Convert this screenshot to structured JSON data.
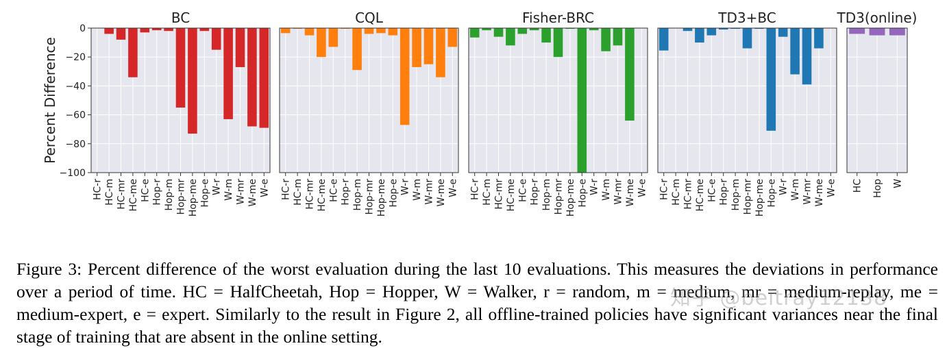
{
  "chart_data": {
    "type": "bar",
    "ylabel": "Percent Difference",
    "ylim": [
      -100,
      0
    ],
    "yticks": [
      0,
      -20,
      -40,
      -60,
      -80,
      -100
    ],
    "yticklabels": [
      "0",
      "−20",
      "−40",
      "−60",
      "−80",
      "−100"
    ],
    "grid": true,
    "panels": [
      {
        "title": "BC",
        "color": "#d62728",
        "categories": [
          "HC-r",
          "HC-m",
          "HC-mr",
          "HC-me",
          "HC-e",
          "Hop-r",
          "Hop-m",
          "Hop-mr",
          "Hop-me",
          "Hop-e",
          "W-r",
          "W-m",
          "W-mr",
          "W-me",
          "W-e"
        ],
        "values": [
          0,
          -4,
          -8,
          -34,
          -3,
          -1.5,
          -2,
          -55,
          -73,
          -2,
          -15,
          -63,
          -27,
          -68,
          -69
        ]
      },
      {
        "title": "CQL",
        "color": "#ff7f0e",
        "categories": [
          "HC-r",
          "HC-m",
          "HC-mr",
          "HC-me",
          "HC-e",
          "Hop-r",
          "Hop-m",
          "Hop-mr",
          "Hop-me",
          "Hop-e",
          "W-r",
          "W-m",
          "W-mr",
          "W-me",
          "W-e"
        ],
        "values": [
          -3.5,
          -0.5,
          -5,
          -20,
          -13,
          -0.5,
          -29,
          -4,
          -3.5,
          -5,
          -67,
          -27,
          -25,
          -34,
          -13
        ]
      },
      {
        "title": "Fisher-BRC",
        "color": "#2ca02c",
        "categories": [
          "HC-r",
          "HC-m",
          "HC-mr",
          "HC-me",
          "HC-e",
          "Hop-r",
          "Hop-m",
          "Hop-mr",
          "Hop-me",
          "Hop-e",
          "W-r",
          "W-m",
          "W-mr",
          "W-me",
          "W-e"
        ],
        "values": [
          -6.5,
          -1.5,
          -6,
          -12,
          -4,
          -1.5,
          -10,
          -20,
          -0.5,
          -100,
          -1.5,
          -16,
          -12,
          -64,
          0
        ]
      },
      {
        "title": "TD3+BC",
        "color": "#1f77b4",
        "categories": [
          "HC-r",
          "HC-m",
          "HC-mr",
          "HC-me",
          "HC-e",
          "Hop-r",
          "Hop-m",
          "Hop-mr",
          "Hop-me",
          "Hop-e",
          "W-r",
          "W-m",
          "W-mr",
          "W-me",
          "W-e"
        ],
        "values": [
          -15.5,
          0,
          -2,
          -10,
          -5,
          -1,
          -0.5,
          -14,
          -0.5,
          -71,
          -6,
          -32,
          -39,
          -14,
          0
        ]
      },
      {
        "title": "TD3(online)",
        "color": "#9467bd",
        "categories": [
          "HC",
          "Hop",
          "W"
        ],
        "values": [
          -4,
          -5,
          -5
        ]
      }
    ]
  },
  "caption": {
    "text": "Figure 3: Percent difference of the worst evaluation during the last 10 evaluations. This measures the deviations in performance over a period of time. HC = HalfCheetah, Hop = Hopper, W = Walker, r = random, m = medium, mr = medium-replay, me = medium-expert, e = expert. Similarly to the result in Figure 2, all offline-trained policies have significant variances near the final stage of training that are absent in the online setting."
  },
  "watermark": {
    "text": "知乎 @beitray12138"
  }
}
